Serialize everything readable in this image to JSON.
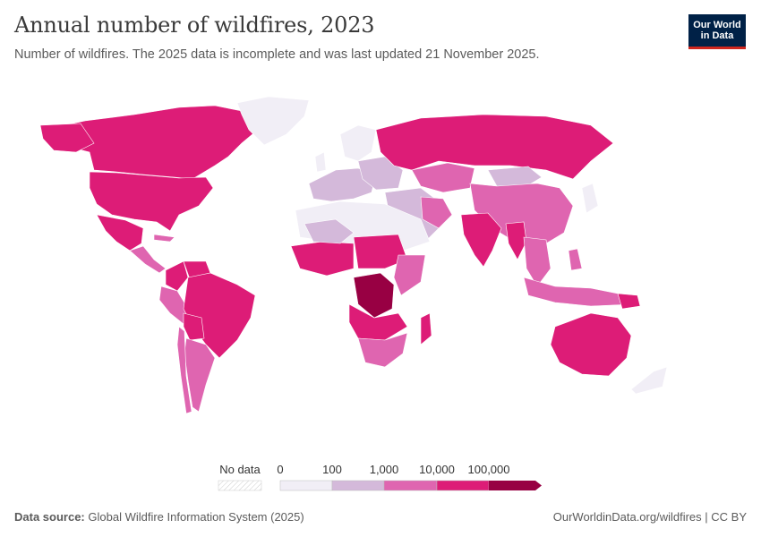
{
  "header": {
    "title": "Annual number of wildfires, 2023",
    "subtitle": "Number of wildfires. The 2025 data is incomplete and was last updated 21 November 2025."
  },
  "logo": {
    "line1": "Our World",
    "line2": "in Data"
  },
  "legend": {
    "no_data_label": "No data",
    "ticks": [
      "0",
      "100",
      "1,000",
      "10,000",
      "100,000"
    ],
    "colors": [
      "#f1eef6",
      "#d4b9da",
      "#df65b0",
      "#dd1c77",
      "#980043"
    ]
  },
  "footer": {
    "source_label": "Data source:",
    "source_text": "Global Wildfire Information System (2025)",
    "url": "OurWorldinData.org/wildfires | CC BY"
  },
  "colors": {
    "bin0": "#f1eef6",
    "bin1": "#d4b9da",
    "bin2": "#df65b0",
    "bin3": "#dd1c77",
    "bin4": "#980043"
  }
}
